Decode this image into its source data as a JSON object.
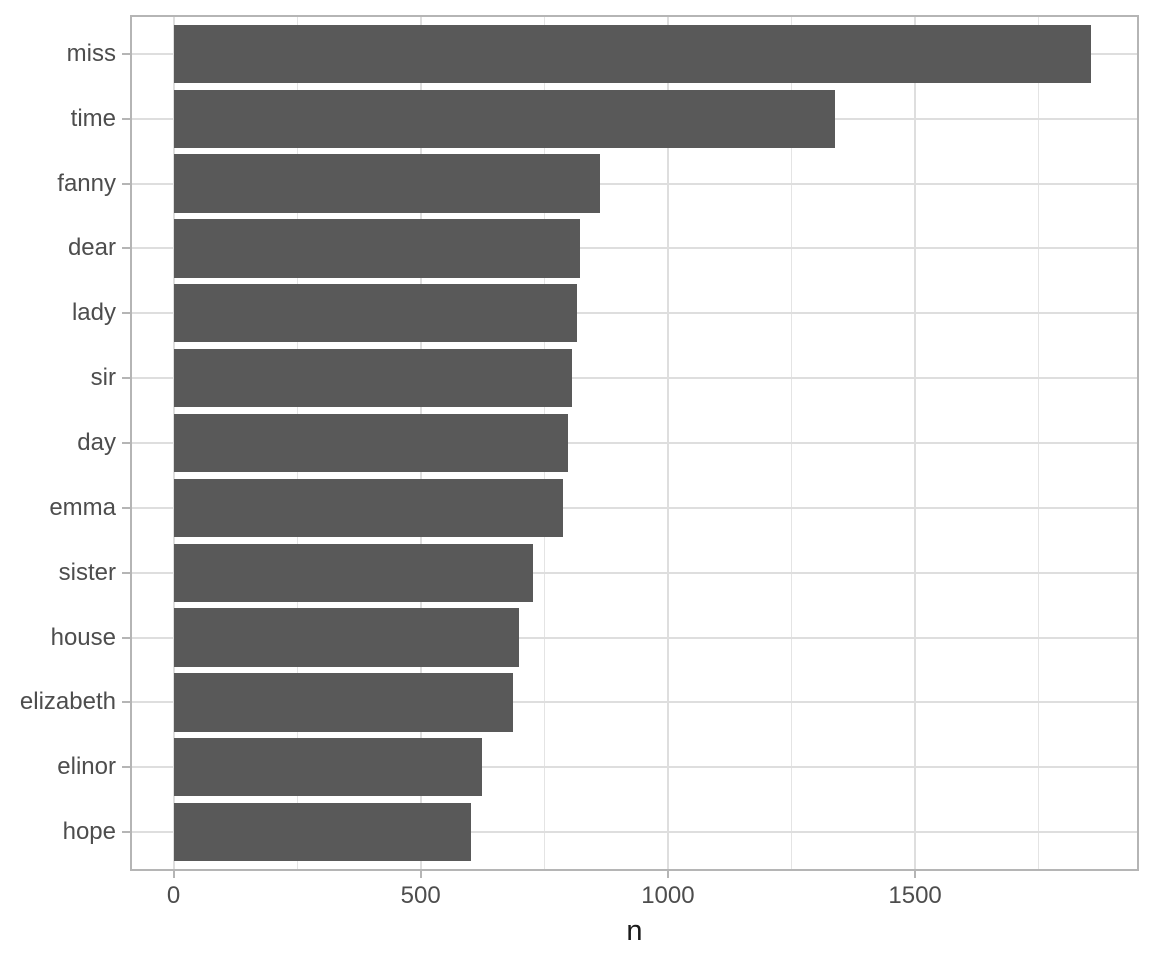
{
  "chart_data": {
    "type": "bar",
    "orientation": "horizontal",
    "title": "",
    "xlabel": "n",
    "ylabel": "",
    "categories": [
      "miss",
      "time",
      "fanny",
      "dear",
      "lady",
      "sir",
      "day",
      "emma",
      "sister",
      "house",
      "elizabeth",
      "elinor",
      "hope"
    ],
    "values": [
      1855,
      1337,
      862,
      822,
      817,
      806,
      797,
      787,
      727,
      699,
      687,
      623,
      601
    ],
    "x_ticks": [
      0,
      500,
      1000,
      1500
    ],
    "x_minor_gridlines": [
      250,
      750,
      1250,
      1750
    ],
    "xlim": [
      0,
      1947
    ],
    "grid": "on",
    "legend": "none",
    "colors": {
      "bar_fill": "#595959",
      "axis_text": "#4d4d4d",
      "axis_title": "#1a1a1a",
      "panel_border": "#b5b5b5",
      "major_grid": "#dedede",
      "minor_grid": "#e4e4e4",
      "background": "#ffffff"
    }
  }
}
